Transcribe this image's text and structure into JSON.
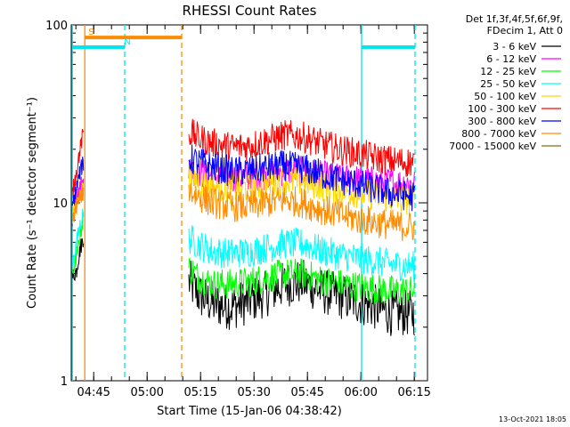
{
  "chart_data": {
    "type": "line",
    "title": "RHESSI Count Rates",
    "xlabel": "Start Time (15-Jan-06 04:38:42)",
    "ylabel": "Count Rate (s⁻¹ detector segment⁻¹)",
    "yscale": "log",
    "ylim": [
      1,
      100
    ],
    "xlim_minutes_from_start": [
      0,
      100
    ],
    "x_tick_labels": [
      "04:45",
      "05:00",
      "05:15",
      "05:30",
      "05:45",
      "06:00",
      "06:15"
    ],
    "x_tick_minutes": [
      6.3,
      21.3,
      36.3,
      51.3,
      66.3,
      81.3,
      96.3
    ],
    "y_tick_labels": [
      "1",
      "10",
      "100"
    ],
    "y_tick_values": [
      1,
      10,
      100
    ],
    "legend_header": [
      "Det 1f,3f,4f,5f,6f,9f,",
      "FDecim 1, Att 0"
    ],
    "legend_position": "top-right outside",
    "footer_date": "13-Oct-2021 18:05",
    "flag_labels": [
      "S",
      "N"
    ],
    "flags": [
      {
        "label": "S",
        "color": "#ff8c00",
        "x_start": 3.8,
        "x_end": 31.0,
        "y": 85
      },
      {
        "label": "N",
        "color": "#00e5ee",
        "x_start": 0.3,
        "x_end": 15.0,
        "y": 75
      },
      {
        "label": "",
        "color": "#00e5ee",
        "x_start": 81.5,
        "x_end": 96.5,
        "y": 75
      }
    ],
    "vlines": [
      {
        "x": 0.3,
        "color": "#00e5ee",
        "dash": false
      },
      {
        "x": 3.8,
        "color": "#ff8c00",
        "dash": false
      },
      {
        "x": 15.0,
        "color": "#00e5ee",
        "dash": true
      },
      {
        "x": 31.0,
        "color": "#ff8c00",
        "dash": true
      },
      {
        "x": 81.5,
        "color": "#00e5ee",
        "dash": false
      },
      {
        "x": 96.5,
        "color": "#00e5ee",
        "dash": true
      }
    ],
    "series": [
      {
        "name": "3 - 6 keV",
        "color": "#000000",
        "x": [
          33,
          36,
          40,
          45,
          50,
          55,
          60,
          65,
          70,
          75,
          80,
          85,
          90,
          96.5
        ],
        "y": [
          3.6,
          3.0,
          2.7,
          2.6,
          2.8,
          3.1,
          3.5,
          3.6,
          3.2,
          3.0,
          2.8,
          2.6,
          2.4,
          2.4
        ],
        "pre_x": [
          0.3,
          1.5,
          2.5,
          3.5
        ],
        "pre_y": [
          3.8,
          4.2,
          5.5,
          6.5
        ]
      },
      {
        "name": "6 - 12 keV",
        "color": "#ff00ff",
        "x": [
          33,
          36,
          40,
          45,
          50,
          55,
          60,
          65,
          70,
          75,
          80,
          85,
          90,
          96.5
        ],
        "y": [
          15.5,
          14.8,
          14.2,
          13.8,
          14.0,
          14.5,
          15.2,
          15.0,
          14.2,
          13.8,
          13.5,
          13.2,
          13.0,
          12.8
        ],
        "pre_x": [
          0.3,
          1.5,
          2.5,
          3.5
        ],
        "pre_y": [
          8.0,
          10.5,
          12.5,
          13.5
        ]
      },
      {
        "name": "12 - 25 keV",
        "color": "#00ff00",
        "x": [
          33,
          36,
          40,
          45,
          50,
          55,
          60,
          65,
          70,
          75,
          80,
          85,
          90,
          96.5
        ],
        "y": [
          4.3,
          3.8,
          3.5,
          3.5,
          3.6,
          3.8,
          4.0,
          4.0,
          3.7,
          3.5,
          3.4,
          3.3,
          3.2,
          3.2
        ],
        "pre_x": [
          0.3,
          1.5,
          2.5,
          3.5
        ],
        "pre_y": [
          4.0,
          5.0,
          6.5,
          8.5
        ]
      },
      {
        "name": "25 - 50 keV",
        "color": "#00ffff",
        "x": [
          33,
          36,
          40,
          45,
          50,
          55,
          60,
          65,
          70,
          75,
          80,
          85,
          90,
          96.5
        ],
        "y": [
          6.3,
          5.8,
          5.3,
          5.2,
          5.3,
          5.6,
          5.9,
          5.9,
          5.4,
          5.1,
          4.9,
          4.7,
          4.5,
          4.4
        ],
        "pre_x": [
          0.3,
          1.5,
          2.5,
          3.5
        ],
        "pre_y": [
          4.5,
          6.0,
          7.5,
          9.0
        ]
      },
      {
        "name": "50 - 100 keV",
        "color": "#ffd700",
        "x": [
          33,
          36,
          40,
          45,
          50,
          55,
          60,
          65,
          70,
          75,
          80,
          85,
          90,
          96.5
        ],
        "y": [
          14.0,
          13.0,
          12.3,
          12.0,
          12.2,
          12.8,
          13.3,
          13.2,
          12.5,
          11.8,
          11.4,
          11.0,
          10.6,
          10.3
        ],
        "pre_x": [
          0.3,
          1.5,
          2.5,
          3.5
        ],
        "pre_y": [
          8.5,
          10.0,
          11.5,
          12.5
        ]
      },
      {
        "name": "100 - 300 keV",
        "color": "#ff0000",
        "x": [
          33,
          36,
          40,
          45,
          50,
          55,
          60,
          65,
          70,
          75,
          80,
          85,
          90,
          96.5
        ],
        "y": [
          25.0,
          23.0,
          21.5,
          20.5,
          21.0,
          22.5,
          24.0,
          23.5,
          21.5,
          20.0,
          19.0,
          18.0,
          17.2,
          16.8
        ],
        "pre_x": [
          0.3,
          1.5,
          2.5,
          3.5
        ],
        "pre_y": [
          11.0,
          15.0,
          20.0,
          25.0
        ]
      },
      {
        "name": "300 - 800 keV",
        "color": "#0000ff",
        "x": [
          33,
          36,
          40,
          45,
          50,
          55,
          60,
          65,
          70,
          75,
          80,
          85,
          90,
          96.5
        ],
        "y": [
          17.8,
          16.8,
          15.8,
          15.0,
          15.2,
          15.8,
          16.2,
          15.6,
          14.5,
          13.5,
          12.8,
          12.0,
          11.3,
          10.8
        ],
        "pre_x": [
          0.3,
          1.5,
          2.5,
          3.5
        ],
        "pre_y": [
          9.5,
          12.0,
          15.0,
          17.0
        ]
      },
      {
        "name": "800 - 7000 keV",
        "color": "#ff8c00",
        "x": [
          33,
          36,
          40,
          45,
          50,
          55,
          60,
          65,
          70,
          75,
          80,
          85,
          90,
          96.5
        ],
        "y": [
          11.8,
          10.8,
          10.0,
          9.5,
          9.6,
          10.0,
          10.4,
          10.0,
          9.2,
          8.6,
          8.1,
          7.8,
          7.5,
          7.3
        ],
        "pre_x": [
          0.3,
          1.5,
          2.5,
          3.5
        ],
        "pre_y": [
          8.0,
          9.5,
          11.0,
          11.5
        ]
      },
      {
        "name": "7000 - 15000 keV",
        "color": "#8b6914",
        "x": [],
        "y": []
      }
    ]
  }
}
